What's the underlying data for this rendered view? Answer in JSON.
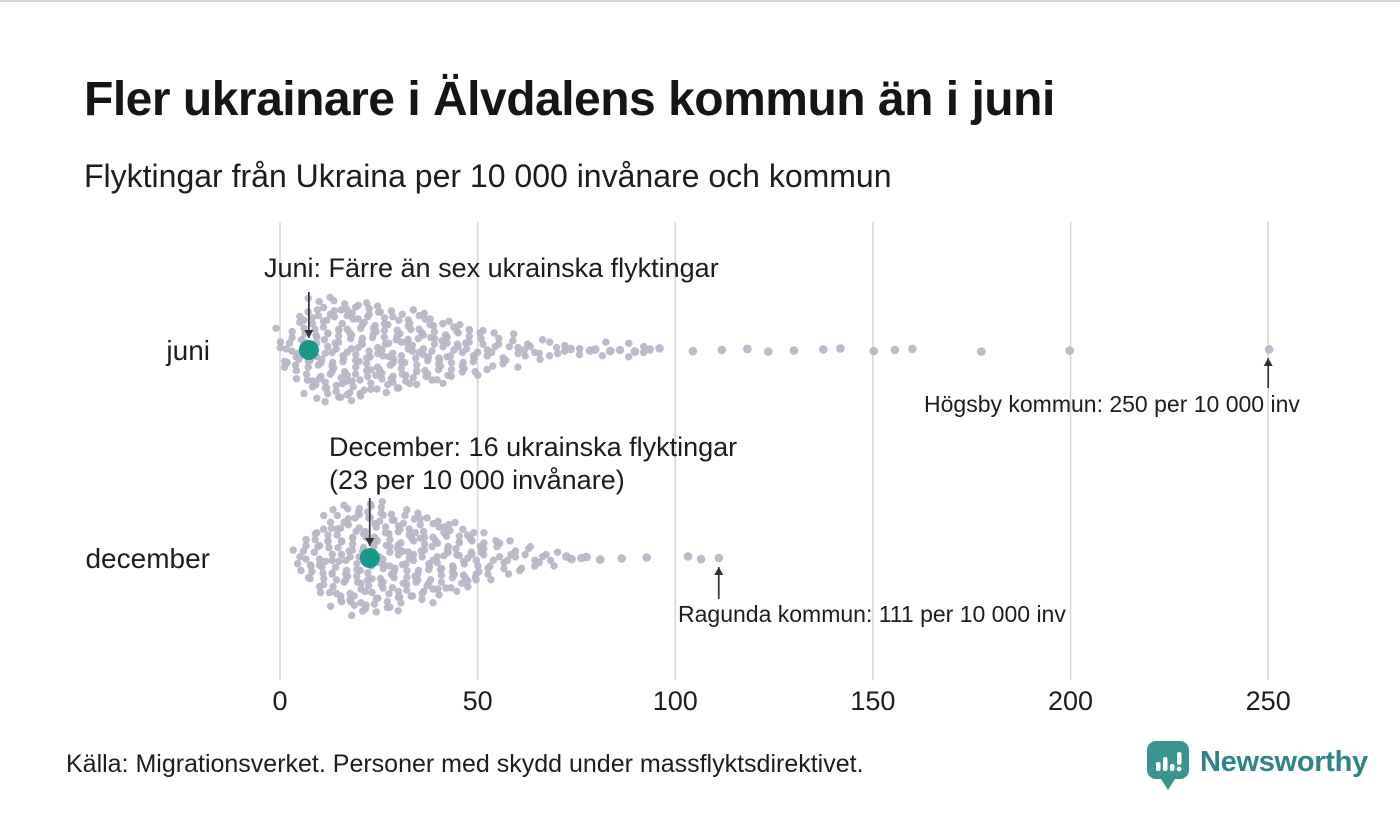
{
  "header": {
    "title": "Fler ukrainare i Älvdalens kommun än i juni",
    "subtitle": "Flyktingar från Ukraina per 10 000 invånare och kommun"
  },
  "chart_data": {
    "type": "beeswarm",
    "title": "Fler ukrainare i Älvdalens kommun än i juni",
    "subtitle": "Flyktingar från Ukraina per 10 000 invånare och kommun",
    "unit": "flyktingar från Ukraina per 10 000 invånare och kommun",
    "x_ticks": [
      0,
      50,
      100,
      150,
      200,
      250
    ],
    "x_range": [
      0,
      250
    ],
    "grid": true,
    "rows": [
      {
        "label": "juni",
        "callout": {
          "text": "Juni: Färre än sex ukrainska flyktingar",
          "value": 7.3
        },
        "outlier": {
          "name": "Högsby kommun",
          "value": 250,
          "label": "Högsby kommun: 250 per 10 000 inv"
        },
        "columns": [
          [
            0.3,
            5
          ],
          [
            2,
            3
          ],
          [
            3.5,
            5
          ],
          [
            5,
            7
          ],
          [
            6.5,
            9
          ],
          [
            8,
            10
          ],
          [
            9.5,
            12
          ],
          [
            11,
            11
          ],
          [
            12.5,
            12
          ],
          [
            14,
            11
          ],
          [
            15.5,
            12
          ],
          [
            17,
            11
          ],
          [
            18.5,
            10
          ],
          [
            20,
            11
          ],
          [
            21.5,
            10
          ],
          [
            23,
            11
          ],
          [
            24.5,
            10
          ],
          [
            26,
            9
          ],
          [
            27.5,
            10
          ],
          [
            29,
            9
          ],
          [
            30.5,
            8
          ],
          [
            32,
            9
          ],
          [
            33.5,
            8
          ],
          [
            35,
            9
          ],
          [
            36.5,
            8
          ],
          [
            38,
            7
          ],
          [
            39.5,
            8
          ],
          [
            41,
            7
          ],
          [
            42.5,
            6
          ],
          [
            44,
            7
          ],
          [
            45.5,
            6
          ],
          [
            47,
            5
          ],
          [
            48.5,
            6
          ],
          [
            50,
            5
          ],
          [
            52,
            5
          ],
          [
            54,
            4
          ],
          [
            56,
            4
          ],
          [
            58,
            3
          ],
          [
            60,
            4
          ],
          [
            62,
            3
          ],
          [
            64,
            2
          ],
          [
            66,
            3
          ],
          [
            68,
            2
          ],
          [
            70,
            2
          ],
          [
            72,
            2
          ],
          [
            74,
            1
          ],
          [
            76,
            2
          ],
          [
            78,
            1
          ],
          [
            80,
            1
          ],
          [
            82,
            2
          ],
          [
            84,
            1
          ],
          [
            86,
            1
          ],
          [
            88,
            2
          ],
          [
            90,
            1
          ],
          [
            92,
            2
          ],
          [
            94,
            1
          ],
          [
            96,
            1
          ],
          [
            104,
            1
          ],
          [
            112,
            1
          ],
          [
            118,
            1
          ],
          [
            124,
            1
          ],
          [
            130,
            1
          ],
          [
            137,
            1
          ],
          [
            142,
            1
          ],
          [
            150,
            1
          ],
          [
            156,
            1
          ],
          [
            160,
            1
          ],
          [
            177,
            1
          ],
          [
            200,
            1
          ],
          [
            250,
            1
          ]
        ]
      },
      {
        "label": "december",
        "callout": {
          "line1": "December: 16 ukrainska flyktingar",
          "line2": "(23 per 10 000 invånare)",
          "value": 22.7
        },
        "outlier": {
          "name": "Ragunda kommun",
          "value": 111,
          "label": "Ragunda kommun: 111 per 10 000 inv"
        },
        "columns": [
          [
            4,
            2
          ],
          [
            5.5,
            3
          ],
          [
            7,
            5
          ],
          [
            8.5,
            6
          ],
          [
            10,
            7
          ],
          [
            11.5,
            9
          ],
          [
            13,
            10
          ],
          [
            14.5,
            11
          ],
          [
            16,
            12
          ],
          [
            17.5,
            11
          ],
          [
            19,
            12
          ],
          [
            20.5,
            13
          ],
          [
            22,
            12
          ],
          [
            23.5,
            13
          ],
          [
            25,
            12
          ],
          [
            26.5,
            11
          ],
          [
            28,
            12
          ],
          [
            29.5,
            11
          ],
          [
            31,
            10
          ],
          [
            32.5,
            11
          ],
          [
            34,
            10
          ],
          [
            35.5,
            9
          ],
          [
            37,
            10
          ],
          [
            38.5,
            9
          ],
          [
            40,
            8
          ],
          [
            41.5,
            9
          ],
          [
            43,
            8
          ],
          [
            44.5,
            7
          ],
          [
            46,
            8
          ],
          [
            47.5,
            7
          ],
          [
            49,
            6
          ],
          [
            50.5,
            6
          ],
          [
            52,
            5
          ],
          [
            54,
            5
          ],
          [
            56,
            4
          ],
          [
            58,
            4
          ],
          [
            60,
            3
          ],
          [
            62,
            3
          ],
          [
            64,
            3
          ],
          [
            66,
            2
          ],
          [
            68,
            2
          ],
          [
            70,
            2
          ],
          [
            72,
            1
          ],
          [
            74,
            1
          ],
          [
            76,
            1
          ],
          [
            78,
            1
          ],
          [
            81,
            1
          ],
          [
            86,
            1
          ],
          [
            93,
            1
          ],
          [
            103,
            1
          ],
          [
            107,
            1
          ],
          [
            111,
            1
          ]
        ]
      }
    ],
    "colors": {
      "dot": "#b7b4c6",
      "highlight": "#17988a",
      "gridline": "#d8d8d8",
      "arrow": "#333333"
    }
  },
  "footer": {
    "source": "Källa: Migrationsverket. Personer med skydd under massflyktsdirektivet."
  },
  "logo": {
    "text": "Newsworthy",
    "text_color": "#2e8486",
    "pin_color": "#3a9591"
  }
}
